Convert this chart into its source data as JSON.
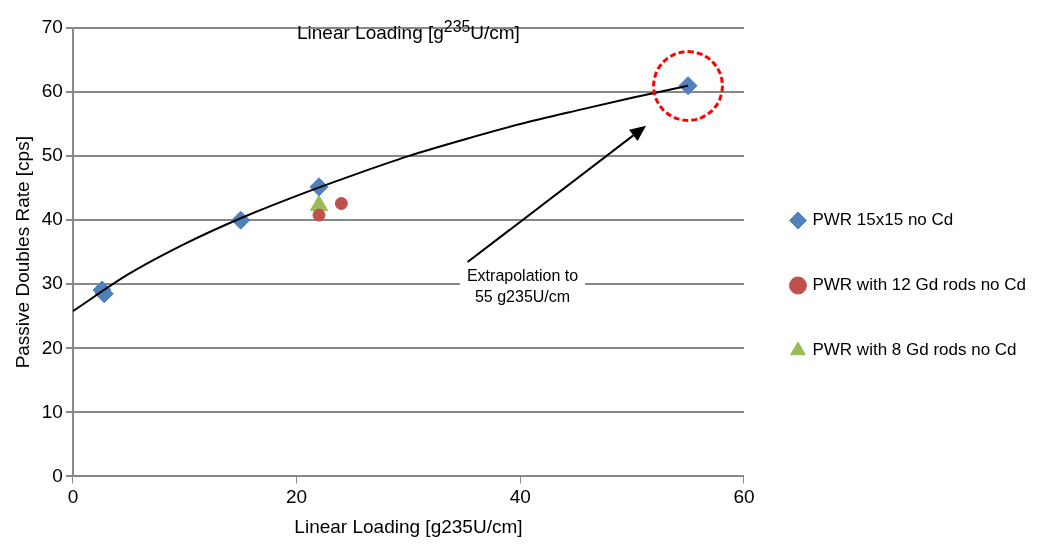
{
  "chart_data": {
    "type": "scatter",
    "title": "Linear Loading [g$^{235}$U/cm]",
    "xlabel": "Linear Loading [g235U/cm]",
    "ylabel": "Passive Doubles Rate [cps]",
    "annotations": [
      "Extrapolation to\n55 g235U/cm"
    ],
    "xlim": [
      0,
      60
    ],
    "xticks": [
      0,
      20,
      40,
      60
    ],
    "ylim": [
      0,
      70
    ],
    "yticks": [
      0,
      10,
      20,
      30,
      40,
      50,
      60,
      70
    ],
    "grid": "y",
    "legend": "right",
    "series": [
      {
        "name": "PWR 15x15 no Cd",
        "color": "#4f81bd",
        "marker": "diamond",
        "x": [
          2.6,
          2.8,
          15,
          22,
          55
        ],
        "values": [
          29.1,
          28.5,
          40,
          45.2,
          61
        ]
      },
      {
        "name": "PWR with 12 Gd rods no Cd",
        "color": "#c0504d",
        "marker": "circle",
        "x": [
          22,
          24
        ],
        "values": [
          40.8,
          42.6
        ]
      },
      {
        "name": "PWR with 8 Gd rods no Cd",
        "color": "#9bbb59",
        "marker": "triangle",
        "x": [
          22
        ],
        "values": [
          42.3
        ]
      },
      {
        "type": "line",
        "color": "#000000",
        "marker": "none",
        "x": [
          0,
          5,
          10,
          15,
          20,
          25,
          30,
          35,
          40,
          45,
          50,
          55
        ],
        "values": [
          25.8,
          31.6,
          36.3,
          40.3,
          43.8,
          47,
          50,
          52.6,
          55,
          57.1,
          59.1,
          61
        ]
      }
    ]
  }
}
